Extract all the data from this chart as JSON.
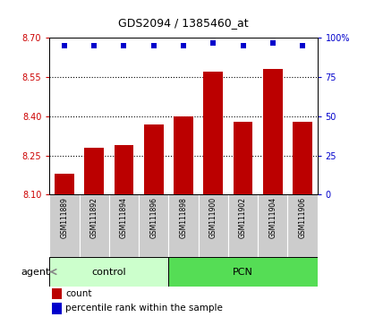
{
  "title": "GDS2094 / 1385460_at",
  "samples": [
    "GSM111889",
    "GSM111892",
    "GSM111894",
    "GSM111896",
    "GSM111898",
    "GSM111900",
    "GSM111902",
    "GSM111904",
    "GSM111906"
  ],
  "bar_values": [
    8.18,
    8.28,
    8.29,
    8.37,
    8.4,
    8.57,
    8.38,
    8.58,
    8.38
  ],
  "percentile_values": [
    95,
    95,
    95,
    95,
    95,
    97,
    95,
    97,
    95
  ],
  "bar_color": "#bb0000",
  "percentile_color": "#0000cc",
  "ylim_left": [
    8.1,
    8.7
  ],
  "ylim_right": [
    0,
    100
  ],
  "yticks_left": [
    8.1,
    8.25,
    8.4,
    8.55,
    8.7
  ],
  "yticks_right": [
    0,
    25,
    50,
    75,
    100
  ],
  "grid_values": [
    8.25,
    8.4,
    8.55
  ],
  "groups": [
    {
      "label": "control",
      "start": 0,
      "end": 3,
      "color": "#ccffcc"
    },
    {
      "label": "PCN",
      "start": 4,
      "end": 8,
      "color": "#55dd55"
    }
  ],
  "agent_label": "agent",
  "legend_count_label": "count",
  "legend_percentile_label": "percentile rank within the sample",
  "bar_width": 0.65,
  "ylabel_left_color": "#cc0000",
  "ylabel_right_color": "#0000cc",
  "background_color": "#ffffff",
  "sample_bg_color": "#cccccc",
  "title_fontsize": 9,
  "tick_fontsize": 7,
  "legend_fontsize": 7.5
}
